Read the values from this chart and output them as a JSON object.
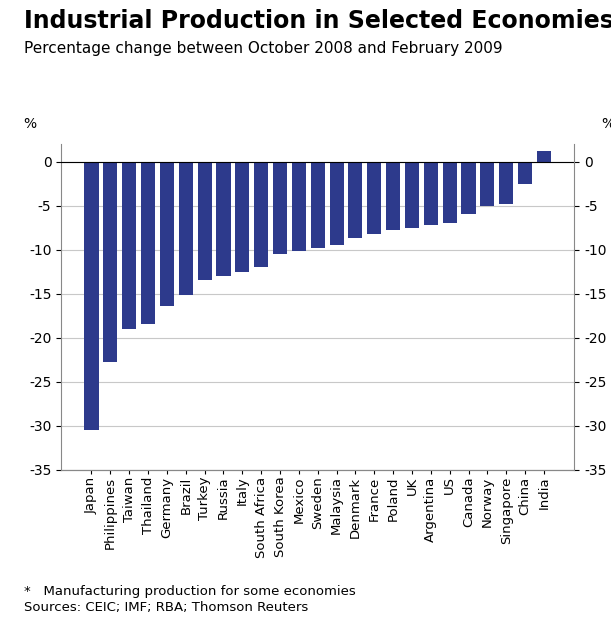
{
  "title": "Industrial Production in Selected Economies*",
  "subtitle": "Percentage change between October 2008 and February 2009",
  "ylabel_left": "%",
  "ylabel_right": "%",
  "footnote1": "*   Manufacturing production for some economies",
  "footnote2": "Sources: CEIC; IMF; RBA; Thomson Reuters",
  "categories": [
    "Japan",
    "Philippines",
    "Taiwan",
    "Thailand",
    "Germany",
    "Brazil",
    "Turkey",
    "Russia",
    "Italy",
    "South Africa",
    "South Korea",
    "Mexico",
    "Sweden",
    "Malaysia",
    "Denmark",
    "France",
    "Poland",
    "UK",
    "Argentina",
    "US",
    "Canada",
    "Norway",
    "Singapore",
    "China",
    "India"
  ],
  "values": [
    -30.5,
    -22.8,
    -19.0,
    -18.5,
    -16.4,
    -15.2,
    -13.5,
    -13.0,
    -12.5,
    -12.0,
    -10.5,
    -10.2,
    -9.8,
    -9.5,
    -8.7,
    -8.2,
    -7.8,
    -7.5,
    -7.2,
    -7.0,
    -6.0,
    -5.0,
    -4.8,
    -2.5,
    1.2
  ],
  "bar_color": "#2d3a8c",
  "background_color": "#ffffff",
  "ylim": [
    -35,
    2
  ],
  "yticks": [
    -35,
    -30,
    -25,
    -20,
    -15,
    -10,
    -5,
    0
  ],
  "grid_color": "#c8c8c8",
  "title_fontsize": 17,
  "subtitle_fontsize": 11,
  "tick_fontsize": 10,
  "footnote_fontsize": 9.5
}
